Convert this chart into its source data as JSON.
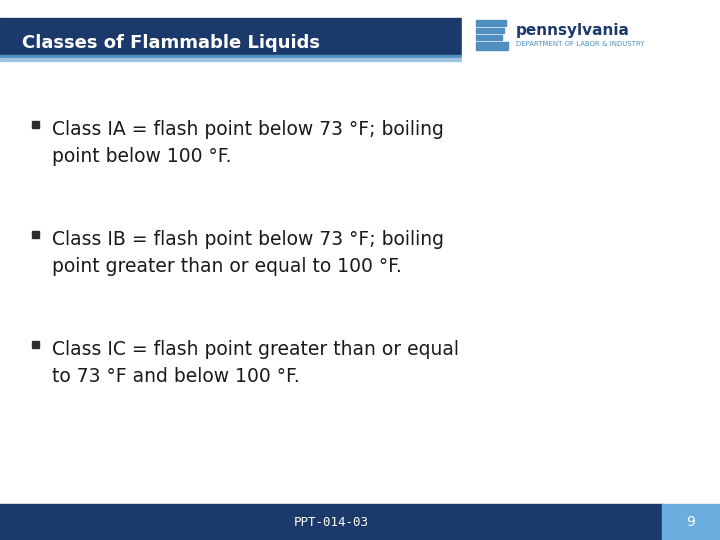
{
  "title": "Classes of Flammable Liquids",
  "title_bg_color": "#1b3a6b",
  "title_text_color": "#ffffff",
  "bg_color": "#ffffff",
  "body_text_color": "#1a1a1a",
  "bullet_color": "#2d2d2d",
  "footer_bg_color": "#1b3a6b",
  "footer_page_bg_color": "#6aaee0",
  "footer_text": "PPT-014-03",
  "footer_page": "9",
  "footer_text_color": "#ffffff",
  "stripe1_color": "#1b3a6b",
  "stripe2_color": "#4f8fc0",
  "stripe3_color": "#9dc3df",
  "pa_text_color": "#1b3a6b",
  "pa_sub_color": "#4f8fc0",
  "bullets": [
    "Class IA = flash point below 73 °F; boiling\npoint below 100 °F.",
    "Class IB = flash point below 73 °F; boiling\npoint greater than or equal to 100 °F.",
    "Class IC = flash point greater than or equal\nto 73 °F and below 100 °F."
  ],
  "font_size_title": 13,
  "font_size_body": 13.5,
  "font_size_footer": 9,
  "font_size_pa": 11,
  "font_size_pa_sub": 5
}
